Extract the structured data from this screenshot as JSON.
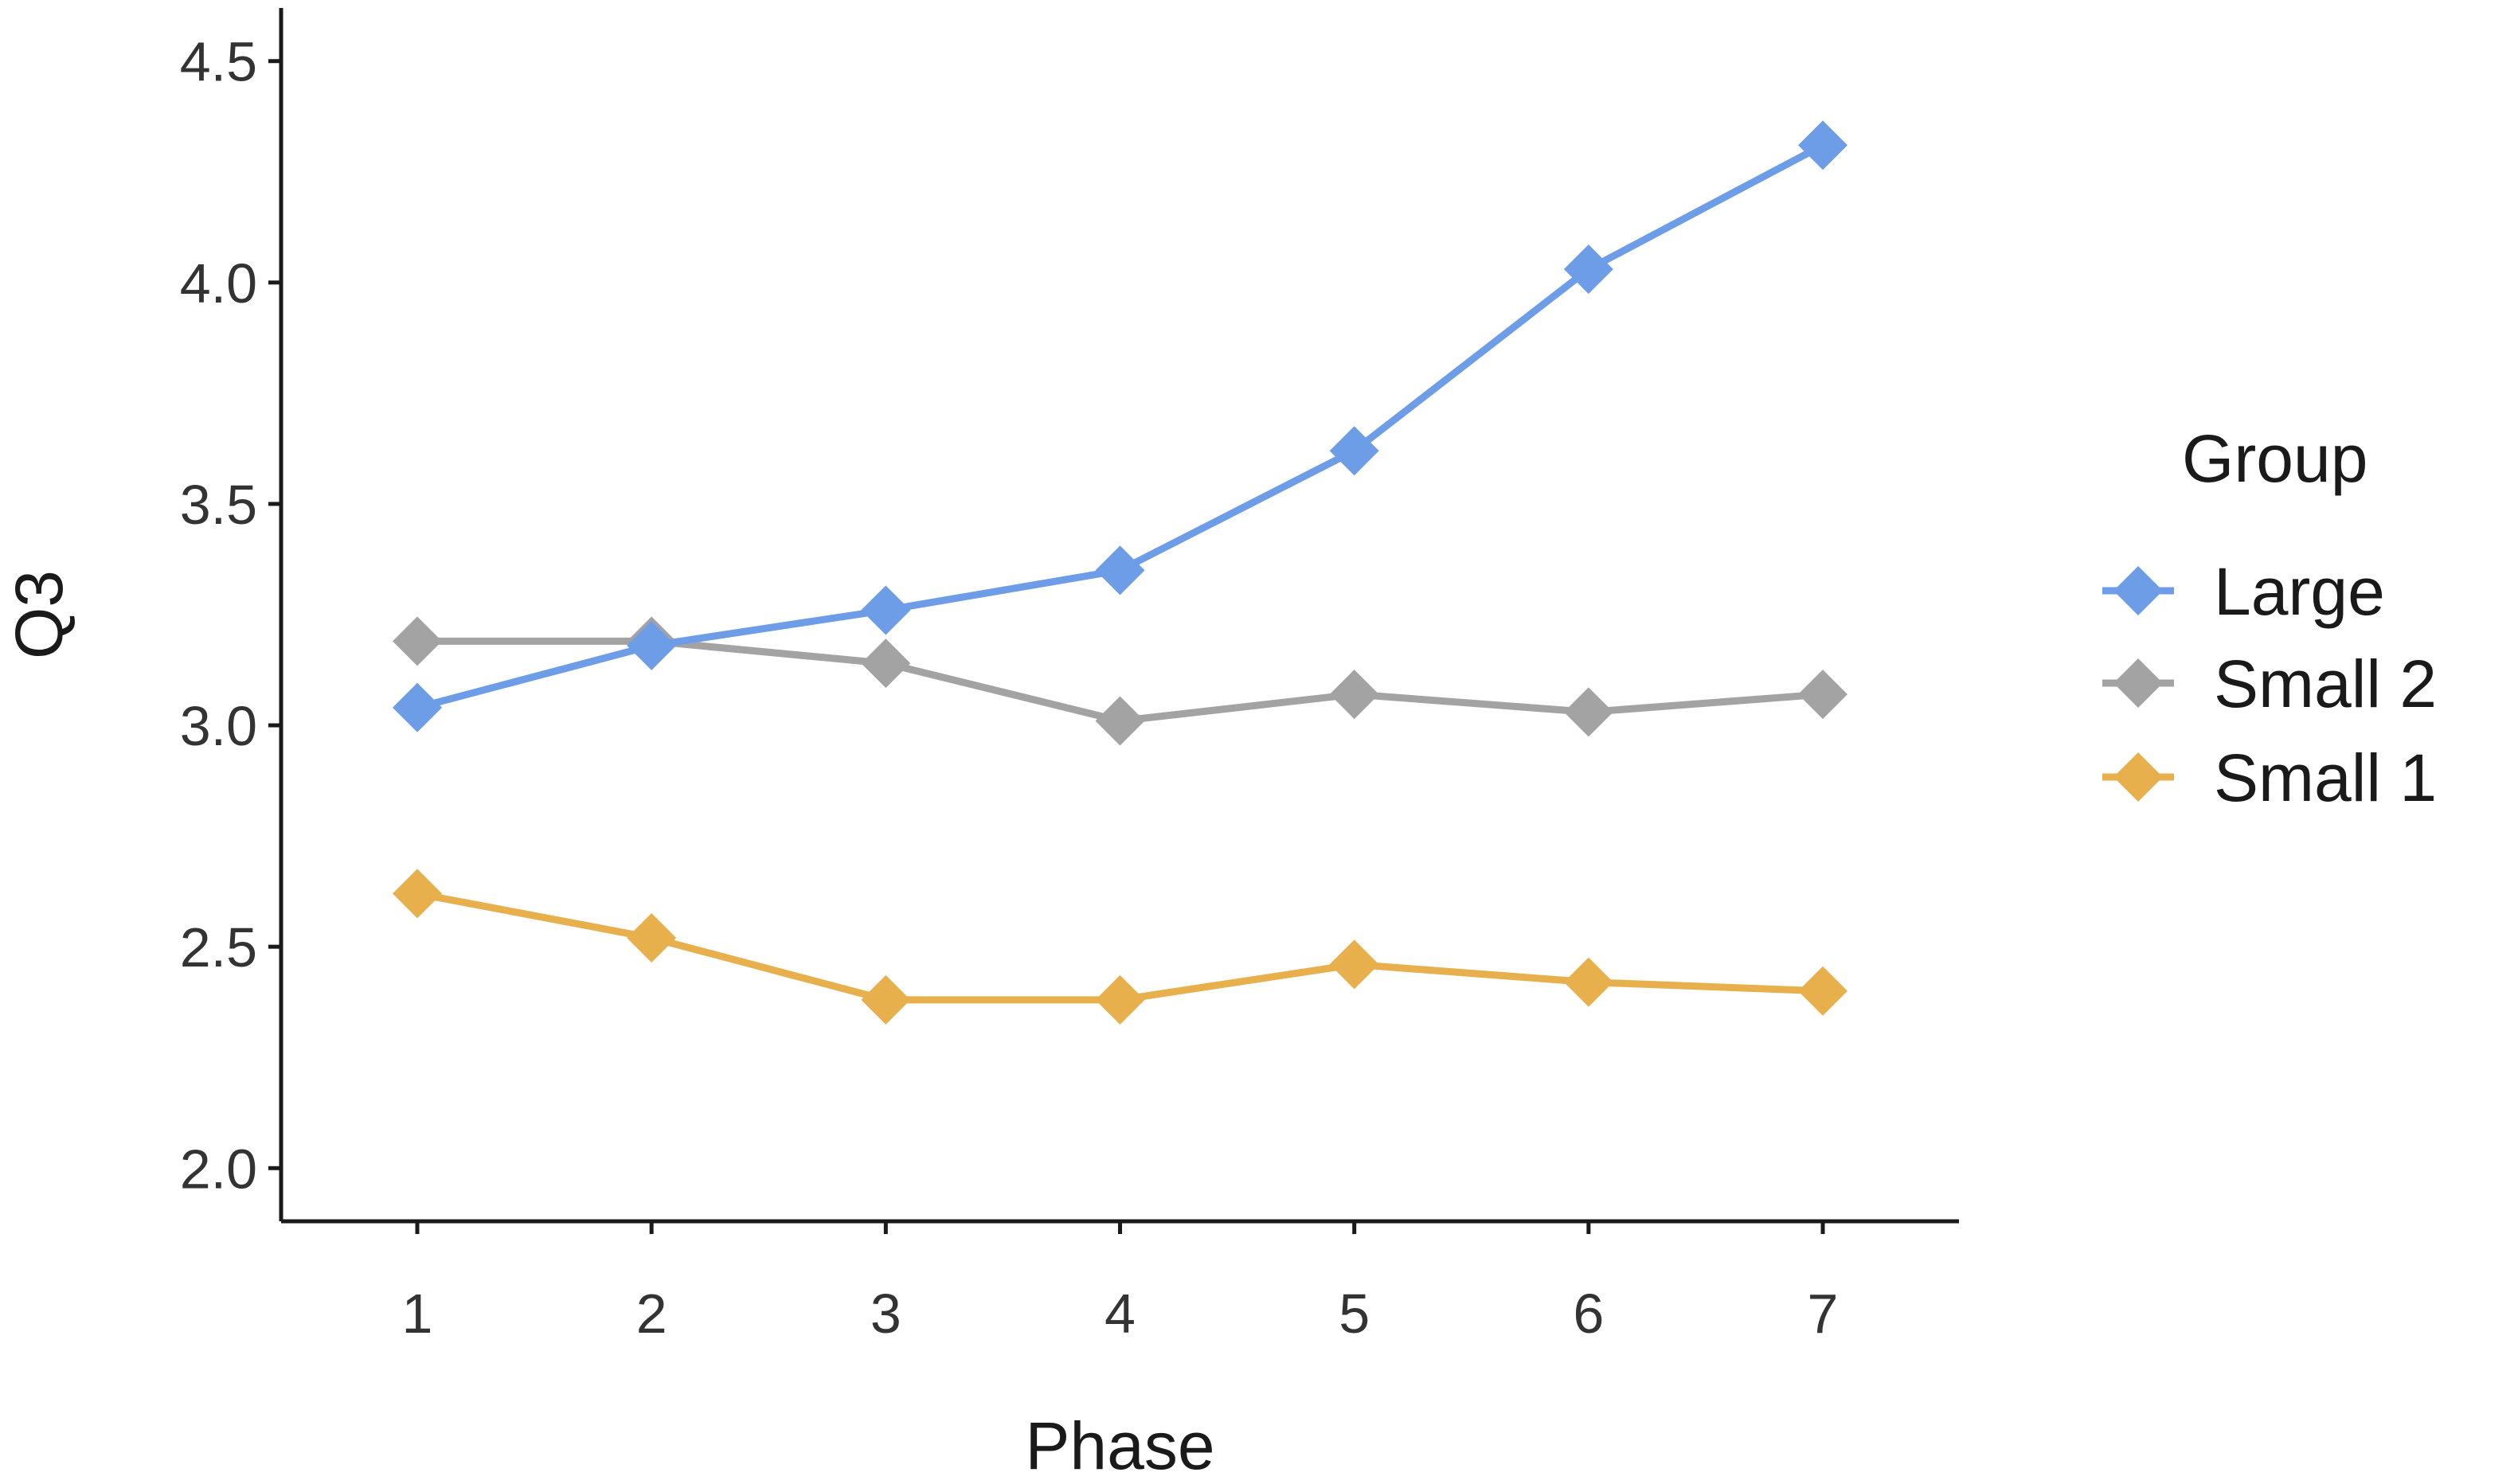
{
  "chart_data": {
    "type": "line",
    "title": "",
    "xlabel": "Phase",
    "ylabel": "Q3",
    "x": [
      1,
      2,
      3,
      4,
      5,
      6,
      7
    ],
    "x_tick_labels": [
      "1",
      "2",
      "3",
      "4",
      "5",
      "6",
      "7"
    ],
    "ylim": [
      1.88,
      4.62
    ],
    "y_ticks": [
      2.0,
      2.5,
      3.0,
      3.5,
      4.0,
      4.5
    ],
    "y_tick_labels": [
      "2.0",
      "2.5",
      "3.0",
      "3.5",
      "4.0",
      "4.5"
    ],
    "grid": false,
    "legend": {
      "title": "Group",
      "placement": "right",
      "marker": "diamond"
    },
    "series": [
      {
        "name": "Large",
        "color": "#6e9de8",
        "values": [
          3.04,
          3.18,
          3.26,
          3.35,
          3.62,
          4.03,
          4.31
        ]
      },
      {
        "name": "Small 2",
        "color": "#a3a3a3",
        "values": [
          3.19,
          3.19,
          3.14,
          3.01,
          3.07,
          3.03,
          3.07
        ]
      },
      {
        "name": "Small 1",
        "color": "#e8b04c",
        "values": [
          2.62,
          2.52,
          2.38,
          2.38,
          2.46,
          2.42,
          2.4
        ]
      }
    ]
  }
}
